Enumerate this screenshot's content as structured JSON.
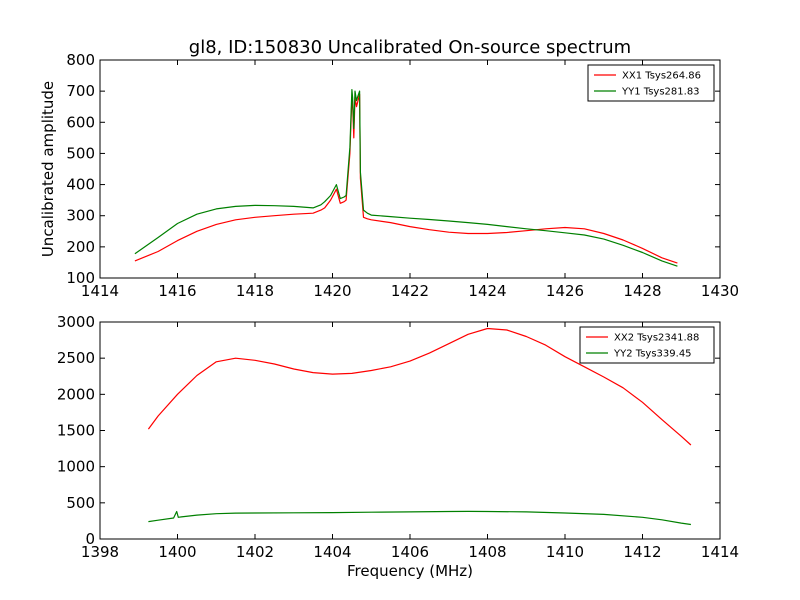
{
  "chart_data": [
    {
      "type": "line",
      "title": "gl8, ID:150830 Uncalibrated On-source spectrum",
      "xlabel": "",
      "ylabel": "Uncalibrated amplitude",
      "xlim": [
        1414,
        1430
      ],
      "ylim": [
        100,
        800
      ],
      "xticks": [
        "1414",
        "1416",
        "1418",
        "1420",
        "1422",
        "1424",
        "1426",
        "1428",
        "1430"
      ],
      "yticks": [
        "100",
        "200",
        "300",
        "400",
        "500",
        "600",
        "700",
        "800"
      ],
      "legend_position": "top-right",
      "series": [
        {
          "name": "XX1 Tsys264.86",
          "color": "#ff0000",
          "x": [
            1414.9,
            1415.5,
            1416,
            1416.5,
            1417,
            1417.5,
            1418,
            1418.5,
            1419,
            1419.5,
            1419.7,
            1419.8,
            1419.95,
            1420.1,
            1420.2,
            1420.3,
            1420.35,
            1420.45,
            1420.5,
            1420.52,
            1420.55,
            1420.58,
            1420.62,
            1420.7,
            1420.72,
            1420.8,
            1420.9,
            1421,
            1421.5,
            1422,
            1422.5,
            1423,
            1423.5,
            1424,
            1424.5,
            1425,
            1425.5,
            1426,
            1426.5,
            1427,
            1427.5,
            1428,
            1428.5,
            1428.9
          ],
          "values": [
            155,
            185,
            220,
            250,
            272,
            287,
            295,
            300,
            305,
            308,
            318,
            325,
            350,
            385,
            340,
            345,
            350,
            500,
            680,
            660,
            550,
            680,
            650,
            690,
            420,
            295,
            290,
            287,
            278,
            265,
            255,
            247,
            243,
            243,
            246,
            252,
            258,
            262,
            258,
            243,
            222,
            195,
            165,
            148
          ]
        },
        {
          "name": "YY1 Tsys281.83",
          "color": "#008000",
          "x": [
            1414.9,
            1415.5,
            1416,
            1416.5,
            1417,
            1417.5,
            1418,
            1418.5,
            1419,
            1419.5,
            1419.7,
            1419.8,
            1419.95,
            1420.1,
            1420.2,
            1420.3,
            1420.35,
            1420.45,
            1420.5,
            1420.52,
            1420.55,
            1420.58,
            1420.62,
            1420.7,
            1420.72,
            1420.8,
            1420.9,
            1421,
            1421.5,
            1422,
            1422.5,
            1423,
            1423.5,
            1424,
            1424.5,
            1425,
            1425.5,
            1426,
            1426.5,
            1427,
            1427.5,
            1428,
            1428.5,
            1428.9
          ],
          "values": [
            178,
            230,
            275,
            305,
            322,
            330,
            333,
            332,
            330,
            325,
            335,
            345,
            365,
            400,
            355,
            360,
            365,
            520,
            705,
            680,
            580,
            700,
            670,
            700,
            440,
            318,
            308,
            302,
            297,
            292,
            288,
            283,
            278,
            272,
            265,
            258,
            252,
            245,
            238,
            225,
            205,
            182,
            155,
            138
          ]
        }
      ]
    },
    {
      "type": "line",
      "title": "",
      "xlabel": "Frequency (MHz)",
      "ylabel": "",
      "xlim": [
        1398,
        1414
      ],
      "ylim": [
        0,
        3000
      ],
      "xticks": [
        "1398",
        "1400",
        "1402",
        "1404",
        "1406",
        "1408",
        "1410",
        "1412",
        "1414"
      ],
      "yticks": [
        "0",
        "500",
        "1000",
        "1500",
        "2000",
        "2500",
        "3000"
      ],
      "legend_position": "top-right",
      "series": [
        {
          "name": "XX2 Tsys2341.88",
          "color": "#ff0000",
          "x": [
            1399.25,
            1399.5,
            1400,
            1400.5,
            1401,
            1401.5,
            1402,
            1402.5,
            1403,
            1403.5,
            1404,
            1404.5,
            1405,
            1405.5,
            1406,
            1406.5,
            1407,
            1407.5,
            1408,
            1408.5,
            1409,
            1409.5,
            1410,
            1410.5,
            1411,
            1411.5,
            1412,
            1412.5,
            1413,
            1413.25
          ],
          "values": [
            1520,
            1700,
            2000,
            2260,
            2450,
            2500,
            2470,
            2420,
            2350,
            2300,
            2280,
            2290,
            2330,
            2380,
            2460,
            2570,
            2700,
            2830,
            2910,
            2890,
            2800,
            2680,
            2520,
            2380,
            2240,
            2090,
            1890,
            1650,
            1420,
            1300
          ]
        },
        {
          "name": "YY2 Tsys339.45",
          "color": "#008000",
          "x": [
            1399.25,
            1399.5,
            1399.9,
            1399.98,
            1400.02,
            1400.1,
            1400.5,
            1401,
            1401.5,
            1402,
            1403,
            1404,
            1405,
            1406,
            1407,
            1407.5,
            1408,
            1409,
            1410,
            1411,
            1412,
            1412.5,
            1413,
            1413.25
          ],
          "values": [
            240,
            260,
            290,
            380,
            300,
            305,
            330,
            350,
            358,
            360,
            362,
            365,
            370,
            375,
            380,
            382,
            380,
            375,
            360,
            340,
            300,
            265,
            220,
            200
          ]
        }
      ]
    }
  ]
}
